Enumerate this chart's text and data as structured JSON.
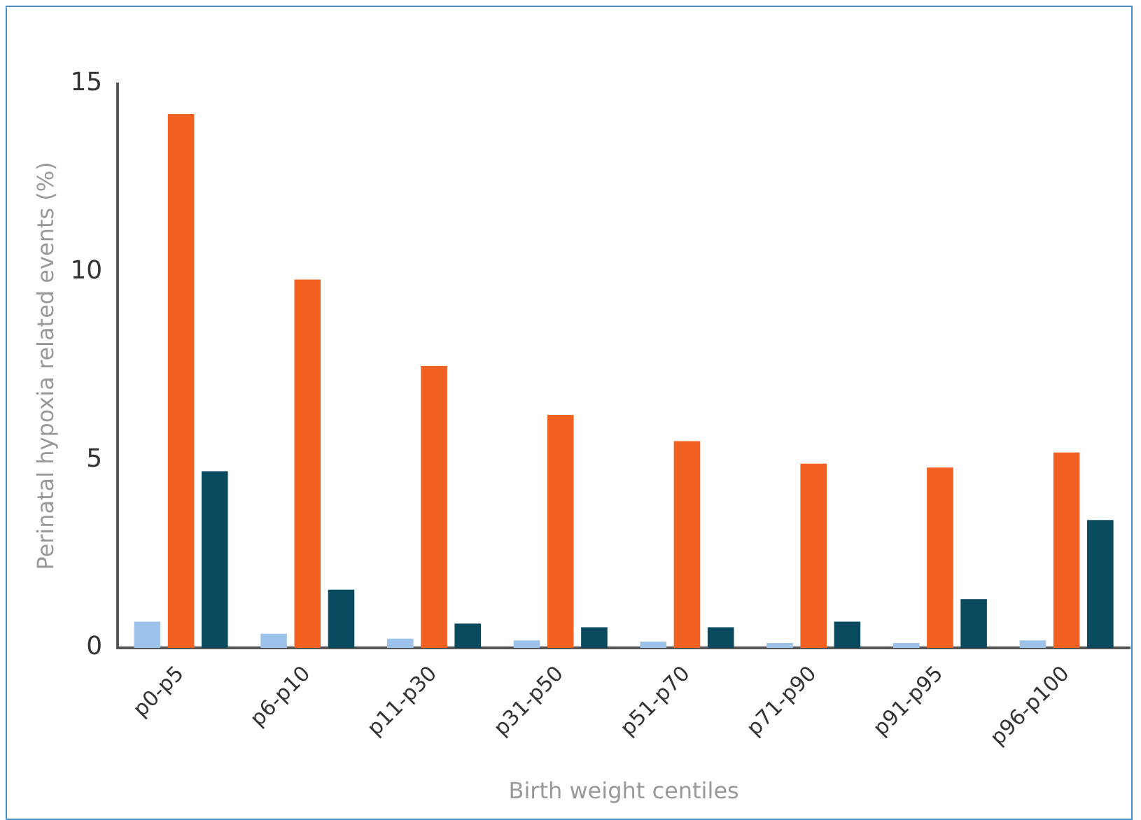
{
  "chart_data": {
    "type": "bar",
    "xlabel": "Birth weight centiles",
    "ylabel": "Perinatal hypoxia related events (%)",
    "categories": [
      "p0-p5",
      "p6-p10",
      "p11-p30",
      "p31-p50",
      "p51-p70",
      "p71-p90",
      "p91-p95",
      "p96-p100"
    ],
    "series": [
      {
        "color": "#9dc3ea",
        "values": [
          0.7,
          0.38,
          0.25,
          0.2,
          0.17,
          0.13,
          0.13,
          0.2
        ]
      },
      {
        "color": "#f26122",
        "values": [
          14.2,
          9.8,
          7.5,
          6.2,
          5.5,
          4.9,
          4.8,
          5.2
        ]
      },
      {
        "color": "#0a4a5e",
        "values": [
          4.7,
          1.55,
          0.65,
          0.55,
          0.55,
          0.7,
          1.3,
          3.4
        ]
      }
    ],
    "ylim": [
      0,
      15
    ],
    "yticks": [
      0,
      5,
      10,
      15
    ],
    "grid": false,
    "legend": false
  }
}
